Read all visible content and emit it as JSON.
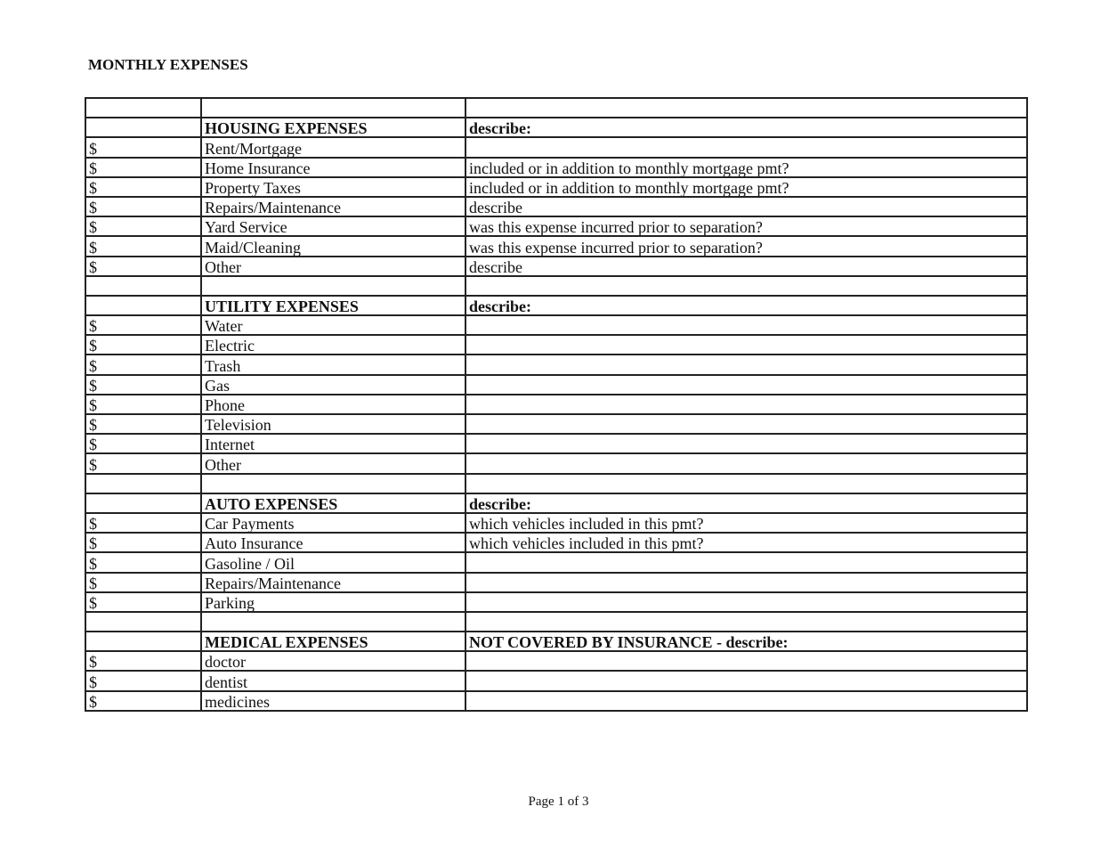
{
  "title": "MONTHLY EXPENSES",
  "footer": "Page 1 of 3",
  "rows": [
    {
      "amount": "",
      "item": "",
      "describe": "",
      "header": false
    },
    {
      "amount": "",
      "item": "HOUSING EXPENSES",
      "describe": "describe:",
      "header": true
    },
    {
      "amount": "$",
      "item": "Rent/Mortgage",
      "describe": "",
      "header": false
    },
    {
      "amount": "$",
      "item": "Home Insurance",
      "describe": "included or in addition to monthly mortgage pmt?",
      "header": false
    },
    {
      "amount": "$",
      "item": "Property Taxes",
      "describe": "included or in addition to monthly mortgage pmt?",
      "header": false
    },
    {
      "amount": "$",
      "item": "Repairs/Maintenance",
      "describe": "describe",
      "header": false
    },
    {
      "amount": "$",
      "item": "Yard Service",
      "describe": "was this expense incurred prior to separation?",
      "header": false
    },
    {
      "amount": "$",
      "item": "Maid/Cleaning",
      "describe": "was this expense incurred prior to separation?",
      "header": false
    },
    {
      "amount": "$",
      "item": "Other",
      "describe": "describe",
      "header": false
    },
    {
      "amount": "",
      "item": "",
      "describe": "",
      "header": false
    },
    {
      "amount": "",
      "item": "UTILITY EXPENSES",
      "describe": "describe:",
      "header": true
    },
    {
      "amount": "$",
      "item": "Water",
      "describe": "",
      "header": false
    },
    {
      "amount": "$",
      "item": "Electric",
      "describe": "",
      "header": false
    },
    {
      "amount": "$",
      "item": "Trash",
      "describe": "",
      "header": false
    },
    {
      "amount": "$",
      "item": "Gas",
      "describe": "",
      "header": false
    },
    {
      "amount": "$",
      "item": "Phone",
      "describe": "",
      "header": false
    },
    {
      "amount": "$",
      "item": "Television",
      "describe": "",
      "header": false
    },
    {
      "amount": "$",
      "item": "Internet",
      "describe": "",
      "header": false
    },
    {
      "amount": "$",
      "item": "Other",
      "describe": "",
      "header": false
    },
    {
      "amount": "",
      "item": "",
      "describe": "",
      "header": false
    },
    {
      "amount": "",
      "item": "AUTO EXPENSES",
      "describe": "describe:",
      "header": true
    },
    {
      "amount": "$",
      "item": "Car Payments",
      "describe": "which vehicles included in this pmt?",
      "header": false
    },
    {
      "amount": "$",
      "item": "Auto Insurance",
      "describe": "which vehicles included in this pmt?",
      "header": false
    },
    {
      "amount": "$",
      "item": "Gasoline / Oil",
      "describe": "",
      "header": false
    },
    {
      "amount": "$",
      "item": "Repairs/Maintenance",
      "describe": "",
      "header": false
    },
    {
      "amount": "$",
      "item": "Parking",
      "describe": "",
      "header": false
    },
    {
      "amount": "",
      "item": "",
      "describe": "",
      "header": false
    },
    {
      "amount": "",
      "item": "MEDICAL EXPENSES",
      "describe": "NOT COVERED BY INSURANCE - describe:",
      "header": true
    },
    {
      "amount": "$",
      "item": "doctor",
      "describe": "",
      "header": false
    },
    {
      "amount": "$",
      "item": "dentist",
      "describe": "",
      "header": false
    },
    {
      "amount": "$",
      "item": "medicines",
      "describe": "",
      "header": false
    }
  ]
}
